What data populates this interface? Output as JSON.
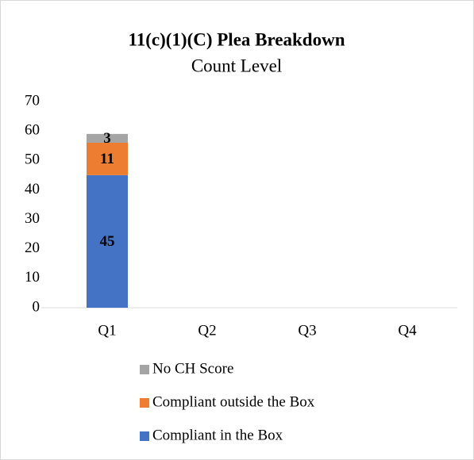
{
  "chart_data": {
    "type": "bar",
    "stacked": true,
    "title": "11(c)(1)(C) Plea Breakdown",
    "subtitle": "Count Level",
    "categories": [
      "Q1",
      "Q2",
      "Q3",
      "Q4"
    ],
    "series": [
      {
        "name": "Compliant in the Box",
        "color": "#4472c4",
        "values": [
          45,
          null,
          null,
          null
        ]
      },
      {
        "name": "Compliant outside the Box",
        "color": "#ed7d31",
        "values": [
          11,
          null,
          null,
          null
        ]
      },
      {
        "name": "No CH Score",
        "color": "#a5a5a5",
        "values": [
          3,
          null,
          null,
          null
        ]
      }
    ],
    "ylim": [
      0,
      70
    ],
    "yticks": [
      0,
      10,
      20,
      30,
      40,
      50,
      60,
      70
    ],
    "grid": false,
    "legend": "bottom"
  }
}
